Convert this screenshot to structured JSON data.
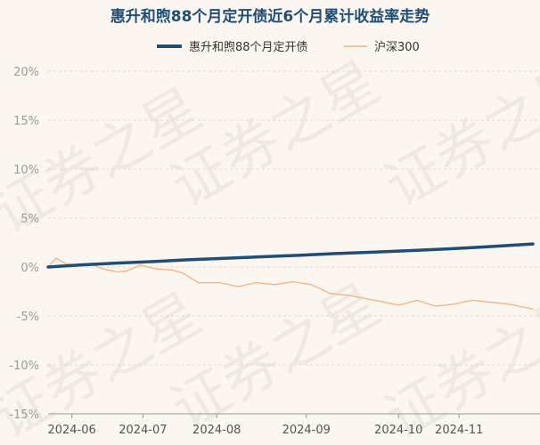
{
  "chart_data": {
    "type": "line",
    "title": "惠升和煦88个月定开债近6个月累计收益率走势",
    "xlabel": "",
    "ylabel": "",
    "ylim": [
      -15,
      20
    ],
    "yticks": [
      20,
      15,
      10,
      5,
      0,
      -5,
      -10,
      -15
    ],
    "ytick_labels": [
      "20%",
      "15%",
      "10%",
      "5%",
      "0%",
      "-5%",
      "-10%",
      "-15%"
    ],
    "xlim": [
      "2024-05-29",
      "2024-11-29"
    ],
    "xticks": [
      "2024-06-07",
      "2024-07-04",
      "2024-08-01",
      "2024-09-04",
      "2024-10-09",
      "2024-11-01"
    ],
    "xtick_labels": [
      "2024-06",
      "2024-07",
      "2024-08",
      "2024-09",
      "2024-10",
      "2024-11"
    ],
    "grid": true,
    "legend": "top-center",
    "watermark": "证券之星",
    "colors": {
      "fund": "#1f4e79",
      "index": "#f2b27d",
      "title": "#1f4e79",
      "grid": "#d8d8d8",
      "tick": "#9a9a9a",
      "background": "#fbf6ef"
    },
    "series": [
      {
        "name": "惠升和煦88个月定开债",
        "color": "#1f4e79",
        "points": [
          [
            "2024-05-29",
            0.0
          ],
          [
            "2024-06-10",
            0.2
          ],
          [
            "2024-06-24",
            0.4
          ],
          [
            "2024-07-08",
            0.55
          ],
          [
            "2024-07-22",
            0.75
          ],
          [
            "2024-08-05",
            0.9
          ],
          [
            "2024-08-19",
            1.05
          ],
          [
            "2024-09-02",
            1.2
          ],
          [
            "2024-09-16",
            1.38
          ],
          [
            "2024-09-30",
            1.52
          ],
          [
            "2024-10-14",
            1.68
          ],
          [
            "2024-10-28",
            1.85
          ],
          [
            "2024-11-11",
            2.05
          ],
          [
            "2024-11-29",
            2.35
          ]
        ]
      },
      {
        "name": "沪深300",
        "color": "#f2b27d",
        "points": [
          [
            "2024-05-29",
            0.0
          ],
          [
            "2024-06-01",
            0.9
          ],
          [
            "2024-06-05",
            0.3
          ],
          [
            "2024-06-10",
            0.2
          ],
          [
            "2024-06-14",
            0.3
          ],
          [
            "2024-06-19",
            -0.2
          ],
          [
            "2024-06-24",
            -0.5
          ],
          [
            "2024-06-28",
            -0.4
          ],
          [
            "2024-07-03",
            0.2
          ],
          [
            "2024-07-09",
            -0.2
          ],
          [
            "2024-07-15",
            -0.3
          ],
          [
            "2024-07-19",
            -0.6
          ],
          [
            "2024-07-25",
            -1.6
          ],
          [
            "2024-08-02",
            -1.6
          ],
          [
            "2024-08-09",
            -2.0
          ],
          [
            "2024-08-16",
            -1.6
          ],
          [
            "2024-08-23",
            -1.8
          ],
          [
            "2024-08-30",
            -1.5
          ],
          [
            "2024-09-06",
            -1.8
          ],
          [
            "2024-09-13",
            -2.7
          ],
          [
            "2024-09-20",
            -2.9
          ],
          [
            "2024-10-02",
            -3.5
          ],
          [
            "2024-10-09",
            -3.9
          ],
          [
            "2024-10-16",
            -3.4
          ],
          [
            "2024-10-23",
            -4.0
          ],
          [
            "2024-10-30",
            -3.8
          ],
          [
            "2024-11-06",
            -3.4
          ],
          [
            "2024-11-13",
            -3.6
          ],
          [
            "2024-11-20",
            -3.8
          ],
          [
            "2024-11-29",
            -4.3
          ]
        ]
      }
    ]
  }
}
